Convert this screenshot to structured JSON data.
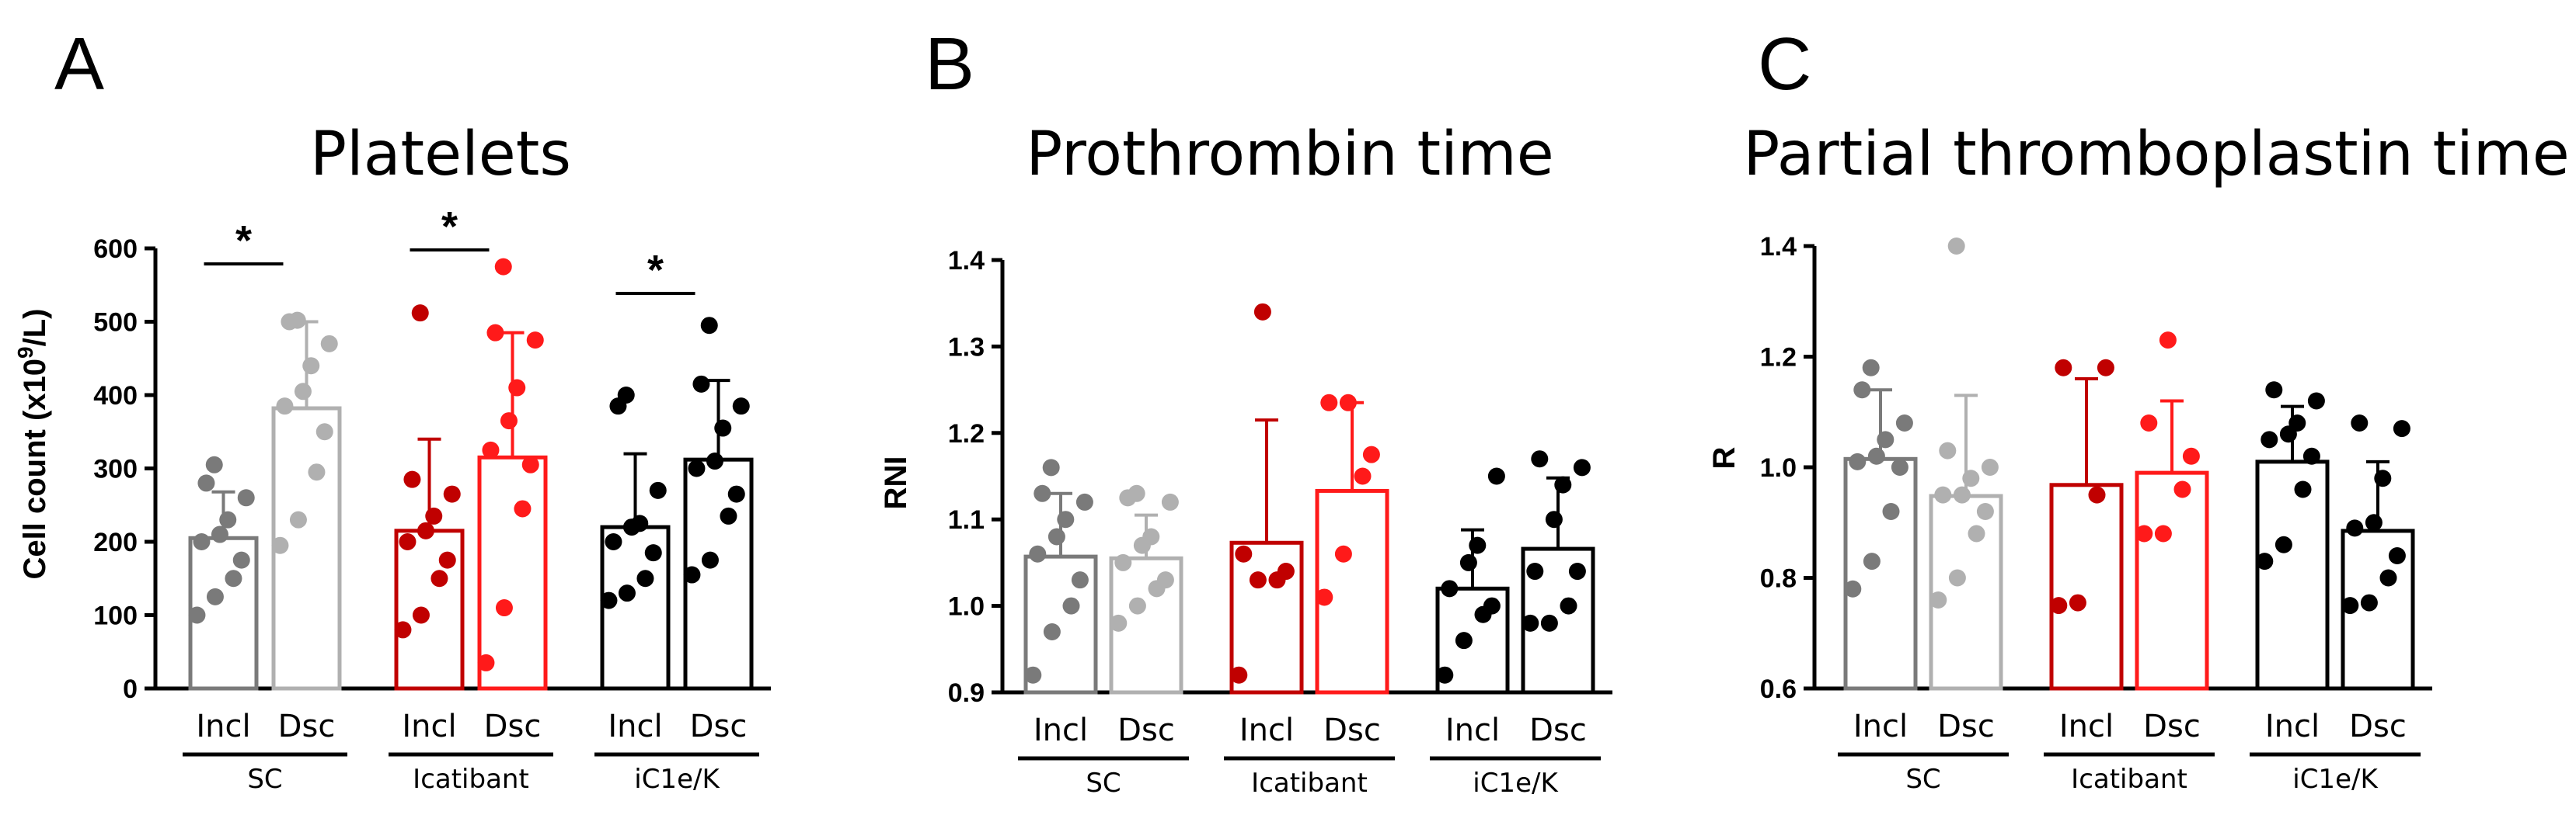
{
  "panels": [
    {
      "letter": "A",
      "title": "Platelets",
      "ylabel_main": "Cell count (x10",
      "ylabel_sup": "9",
      "ylabel_tail": "/L)"
    },
    {
      "letter": "B",
      "title": "Prothrombin time",
      "ylabel": "RNI"
    },
    {
      "letter": "C",
      "title": "Partial thromboplastin time",
      "ylabel": "R"
    }
  ],
  "colors": {
    "sc_incl": "#7a7a7a",
    "sc_dsc": "#b0b0b0",
    "ica_incl": "#c00000",
    "ica_dsc": "#ff1a1a",
    "ic_incl": "#000000",
    "ic_dsc": "#000000"
  },
  "chart_data": [
    {
      "type": "bar",
      "title": "Platelets",
      "ylabel": "Cell count (x10^9/L)",
      "ylim": [
        0,
        600
      ],
      "yticks": [
        0,
        100,
        200,
        300,
        400,
        500,
        600
      ],
      "ytick_labels": [
        "0",
        "100",
        "200",
        "300",
        "400",
        "500",
        "600"
      ],
      "groups": [
        "SC",
        "Icatibant",
        "iC1e/K"
      ],
      "categories": [
        "Incl",
        "Dsc"
      ],
      "bars": [
        {
          "group": "SC",
          "category": "Incl",
          "mean": 205,
          "sd_upper": 268,
          "color_key": "sc_incl",
          "points": [
            100,
            125,
            150,
            175,
            200,
            210,
            230,
            260,
            280,
            305
          ]
        },
        {
          "group": "SC",
          "category": "Dsc",
          "mean": 382,
          "sd_upper": 500,
          "color_key": "sc_dsc",
          "points": [
            195,
            230,
            295,
            350,
            385,
            405,
            440,
            470,
            500,
            502
          ]
        },
        {
          "group": "Icatibant",
          "category": "Incl",
          "mean": 215,
          "sd_upper": 340,
          "color_key": "ica_incl",
          "points": [
            80,
            100,
            150,
            175,
            200,
            215,
            235,
            265,
            285,
            512
          ]
        },
        {
          "group": "Icatibant",
          "category": "Dsc",
          "mean": 315,
          "sd_upper": 485,
          "color_key": "ica_dsc",
          "points": [
            35,
            110,
            245,
            305,
            325,
            365,
            410,
            475,
            485,
            575
          ]
        },
        {
          "group": "iC1e/K",
          "category": "Incl",
          "mean": 220,
          "sd_upper": 320,
          "color_key": "ic_incl",
          "points": [
            120,
            130,
            150,
            185,
            200,
            220,
            225,
            270,
            385,
            400
          ]
        },
        {
          "group": "iC1e/K",
          "category": "Dsc",
          "mean": 312,
          "sd_upper": 420,
          "color_key": "ic_dsc",
          "points": [
            155,
            175,
            235,
            265,
            300,
            310,
            355,
            385,
            415,
            495
          ]
        }
      ],
      "significance": [
        {
          "group": "SC",
          "label": "*"
        },
        {
          "group": "Icatibant",
          "label": "*"
        },
        {
          "group": "iC1e/K",
          "label": "*"
        }
      ]
    },
    {
      "type": "bar",
      "title": "Prothrombin time",
      "ylabel": "RNI",
      "ylim": [
        0.9,
        1.4
      ],
      "yticks": [
        0.9,
        1.0,
        1.1,
        1.2,
        1.3,
        1.4
      ],
      "ytick_labels": [
        "0.9",
        "1.0",
        "1.1",
        "1.2",
        "1.3",
        "1.4"
      ],
      "groups": [
        "SC",
        "Icatibant",
        "iC1e/K"
      ],
      "categories": [
        "Incl",
        "Dsc"
      ],
      "bars": [
        {
          "group": "SC",
          "category": "Incl",
          "mean": 1.057,
          "sd_upper": 1.13,
          "color_key": "sc_incl",
          "points": [
            0.92,
            0.97,
            1.0,
            1.03,
            1.06,
            1.08,
            1.1,
            1.12,
            1.13,
            1.16
          ]
        },
        {
          "group": "SC",
          "category": "Dsc",
          "mean": 1.055,
          "sd_upper": 1.105,
          "color_key": "sc_dsc",
          "points": [
            0.98,
            1.0,
            1.02,
            1.03,
            1.05,
            1.07,
            1.08,
            1.12,
            1.125,
            1.13
          ]
        },
        {
          "group": "Icatibant",
          "category": "Incl",
          "mean": 1.073,
          "sd_upper": 1.215,
          "color_key": "ica_incl",
          "points": [
            0.92,
            1.03,
            1.03,
            1.04,
            1.06,
            1.34
          ]
        },
        {
          "group": "Icatibant",
          "category": "Dsc",
          "mean": 1.133,
          "sd_upper": 1.235,
          "color_key": "ica_dsc",
          "points": [
            1.01,
            1.06,
            1.15,
            1.175,
            1.235,
            1.235
          ]
        },
        {
          "group": "iC1e/K",
          "category": "Incl",
          "mean": 1.02,
          "sd_upper": 1.088,
          "color_key": "ic_incl",
          "points": [
            0.92,
            0.96,
            0.99,
            1.0,
            1.02,
            1.05,
            1.07,
            1.15
          ]
        },
        {
          "group": "iC1e/K",
          "category": "Dsc",
          "mean": 1.066,
          "sd_upper": 1.148,
          "color_key": "ic_dsc",
          "points": [
            0.98,
            0.98,
            1.0,
            1.04,
            1.04,
            1.1,
            1.14,
            1.16,
            1.17
          ]
        }
      ]
    },
    {
      "type": "bar",
      "title": "Partial thromboplastin time",
      "ylabel": "R",
      "ylim": [
        0.6,
        1.4
      ],
      "yticks": [
        0.6,
        0.8,
        1.0,
        1.2,
        1.4
      ],
      "ytick_labels": [
        "0.6",
        "0.8",
        "1.0",
        "1.2",
        "1.4"
      ],
      "groups": [
        "SC",
        "Icatibant",
        "iC1e/K"
      ],
      "categories": [
        "Incl",
        "Dsc"
      ],
      "bars": [
        {
          "group": "SC",
          "category": "Incl",
          "mean": 1.015,
          "sd_upper": 1.14,
          "color_key": "sc_incl",
          "points": [
            0.78,
            0.83,
            0.92,
            1.0,
            1.01,
            1.02,
            1.05,
            1.08,
            1.14,
            1.18
          ]
        },
        {
          "group": "SC",
          "category": "Dsc",
          "mean": 0.948,
          "sd_upper": 1.13,
          "color_key": "sc_dsc",
          "points": [
            0.76,
            0.8,
            0.88,
            0.92,
            0.95,
            0.95,
            0.98,
            1.0,
            1.03,
            1.4
          ]
        },
        {
          "group": "Icatibant",
          "category": "Incl",
          "mean": 0.968,
          "sd_upper": 1.16,
          "color_key": "ica_incl",
          "points": [
            0.75,
            0.755,
            0.95,
            1.18,
            1.18
          ]
        },
        {
          "group": "Icatibant",
          "category": "Dsc",
          "mean": 0.99,
          "sd_upper": 1.12,
          "color_key": "ica_dsc",
          "points": [
            0.88,
            0.88,
            0.96,
            1.02,
            1.08,
            1.23
          ]
        },
        {
          "group": "iC1e/K",
          "category": "Incl",
          "mean": 1.01,
          "sd_upper": 1.11,
          "color_key": "ic_incl",
          "points": [
            0.83,
            0.86,
            0.96,
            1.02,
            1.05,
            1.06,
            1.08,
            1.12,
            1.14
          ]
        },
        {
          "group": "iC1e/K",
          "category": "Dsc",
          "mean": 0.885,
          "sd_upper": 1.01,
          "color_key": "ic_dsc",
          "points": [
            0.75,
            0.755,
            0.8,
            0.84,
            0.89,
            0.9,
            0.98,
            1.07,
            1.08
          ]
        }
      ]
    }
  ]
}
